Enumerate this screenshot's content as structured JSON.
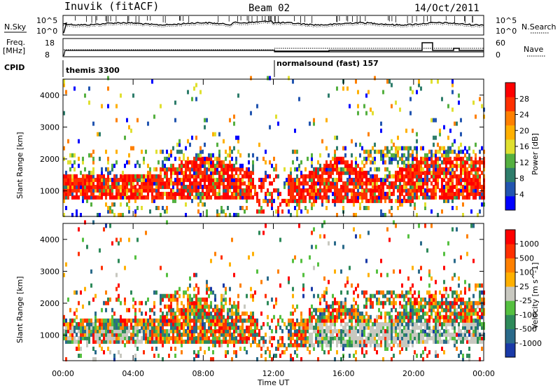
{
  "header": {
    "station": "Inuvik (fitACF)",
    "beam": "Beam 02",
    "date": "14/Oct/2011"
  },
  "params": {
    "nsky_label": "N.Sky",
    "nsearch_label": "N.Search",
    "freq_label": "Freq.",
    "mhz_label": "[MHz]",
    "nave_label": "Nave",
    "cpid_label": "CPID",
    "nsky_ticks": [
      "10^5",
      "10^0"
    ],
    "nsearch_ticks": [
      "10^5",
      "10^0"
    ],
    "freq_ticks": [
      "18",
      "8"
    ],
    "nave_ticks": [
      "60",
      "0"
    ],
    "cpid_segments": [
      "themis 3300",
      "normalsound (fast) 157"
    ]
  },
  "chart_data": [
    {
      "type": "heatmap",
      "panel": "power",
      "ylabel": "Slant Range [km]",
      "yticks": [
        "1000",
        "2000",
        "3000",
        "4000"
      ],
      "ylim": [
        200,
        4500
      ],
      "xlim": [
        0,
        24
      ],
      "colorbar_label": "Power [dB]",
      "colorbar_ticks": [
        "28",
        "24",
        "20",
        "16",
        "12",
        "8",
        "4"
      ],
      "colors": [
        "#0000ff",
        "#2255b0",
        "#2e7d6b",
        "#55b040",
        "#e0e030",
        "#ffb000",
        "#ff8000",
        "#ff3000",
        "#ff0000"
      ]
    },
    {
      "type": "heatmap",
      "panel": "velocity",
      "ylabel": "Slant Range [km]",
      "yticks": [
        "1000",
        "2000",
        "3000",
        "4000"
      ],
      "ylim": [
        200,
        4500
      ],
      "xlim": [
        0,
        24
      ],
      "colorbar_label": "Velocity [m s^-1]",
      "colorbar_ticks": [
        "1000",
        "500",
        "100",
        "25",
        "-25",
        "-100",
        "-500",
        "-1000"
      ],
      "colors": [
        "#1a3aa8",
        "#2a6a8a",
        "#2e8a5a",
        "#55c040",
        "#c8c8c0",
        "#ffb000",
        "#ff8000",
        "#ff3000",
        "#ff0000"
      ]
    }
  ],
  "xaxis": {
    "label": "Time UT",
    "ticks": [
      "00:00",
      "04:00",
      "08:00",
      "12:00",
      "16:00",
      "20:00",
      "00:00"
    ]
  }
}
